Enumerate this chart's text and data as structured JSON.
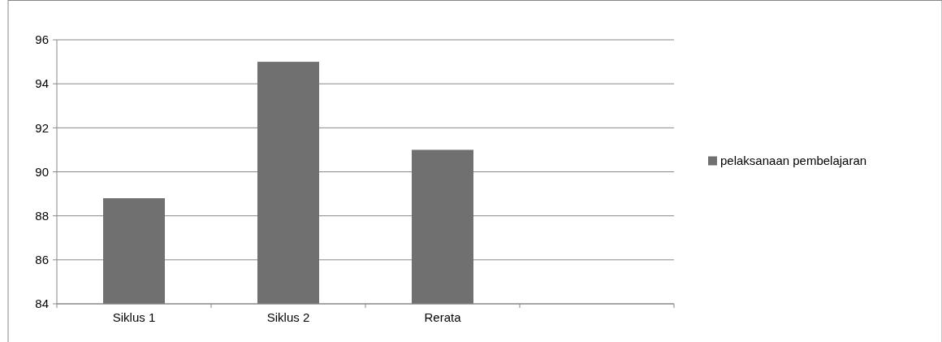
{
  "chart_data": {
    "type": "bar",
    "categories": [
      "Siklus 1",
      "Siklus 2",
      "Rerata",
      null
    ],
    "series": [
      {
        "name": "pelaksanaan pembelajaran",
        "color": "#707070",
        "values": [
          88.8,
          95,
          91,
          null
        ]
      }
    ],
    "ylim": [
      84,
      96
    ],
    "yticks": [
      84,
      86,
      88,
      90,
      92,
      94,
      96
    ],
    "grid": "y",
    "legend": "right"
  }
}
